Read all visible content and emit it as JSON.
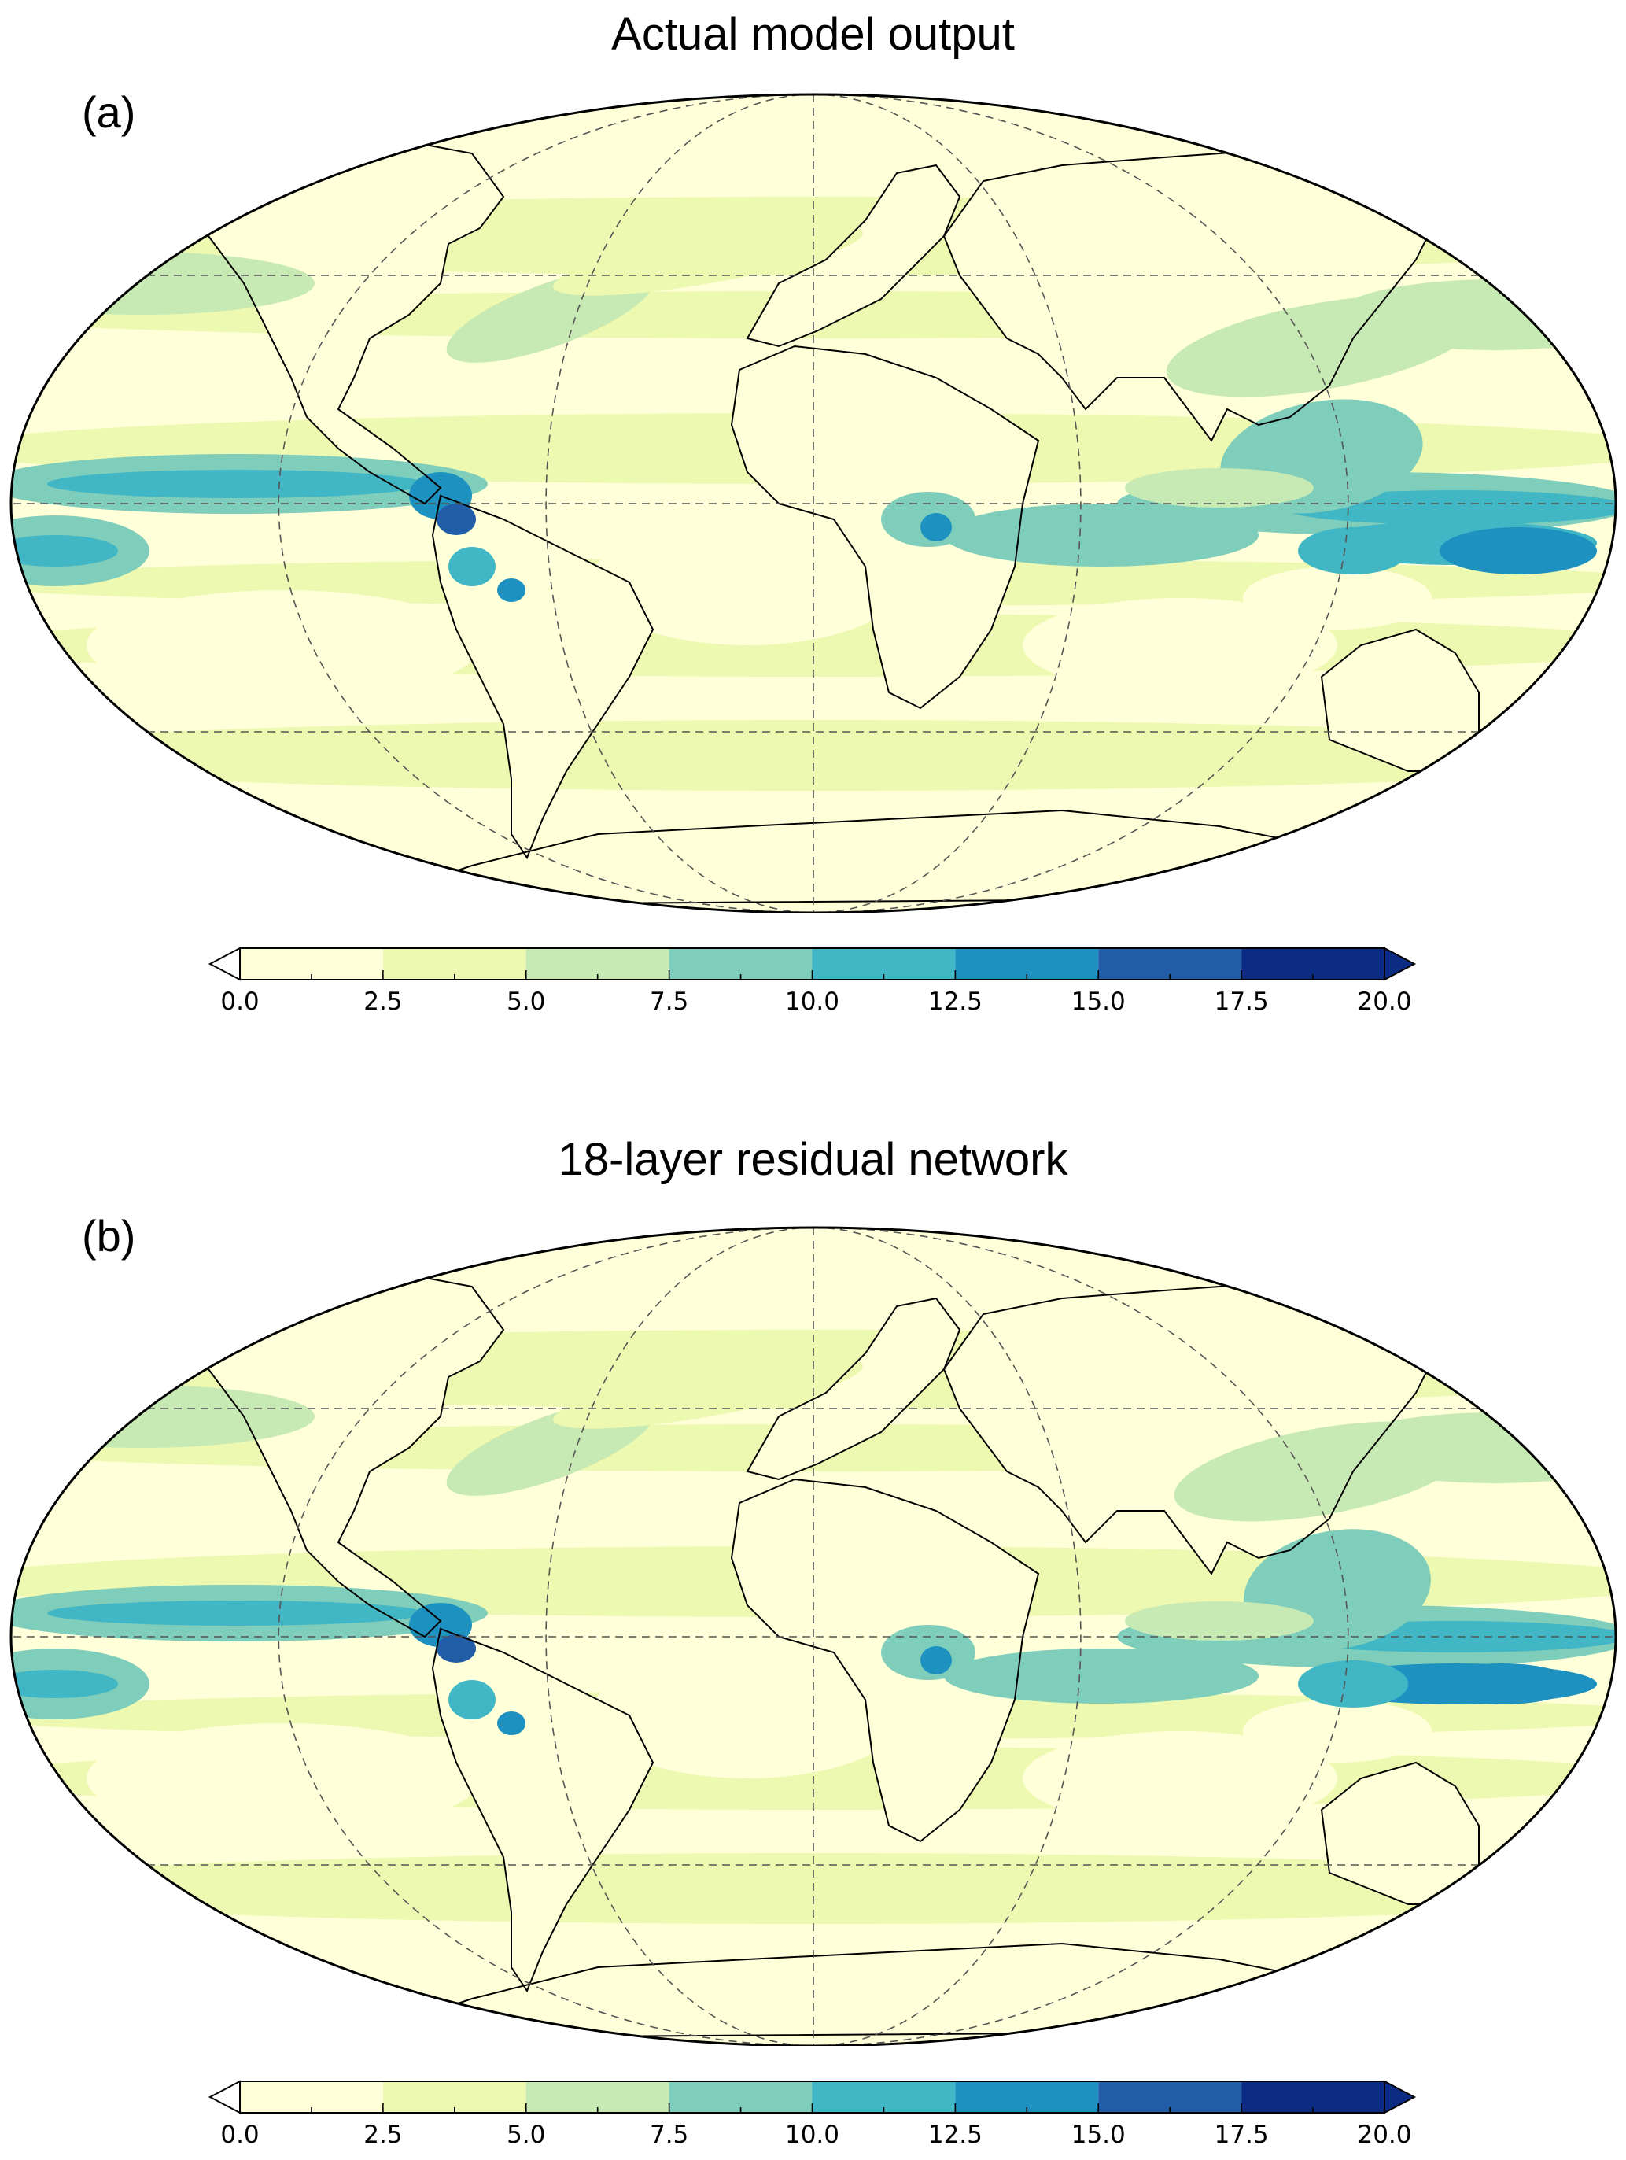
{
  "panels": [
    {
      "id": "a",
      "title": "Actual model output",
      "label": "(a)"
    },
    {
      "id": "b",
      "title": "18-layer  residual network",
      "label": "(b)"
    }
  ],
  "colorbar": {
    "ticks": [
      "0.0",
      "2.5",
      "5.0",
      "7.5",
      "10.0",
      "12.5",
      "15.0",
      "17.5",
      "20.0"
    ],
    "levels": [
      0,
      2.5,
      5,
      7.5,
      10,
      12.5,
      15,
      17.5,
      20
    ],
    "colors": [
      "#ffffd9",
      "#edf8b1",
      "#c7e9b4",
      "#7fcdbb",
      "#41b6c4",
      "#1d91c0",
      "#225ea8",
      "#0c2c84"
    ],
    "under_color": "#ffffff",
    "over_color": "#0c2c84",
    "extend": "both"
  },
  "map": {
    "projection": "robinson",
    "central_longitude": 0,
    "graticule": {
      "meridians_deg": 60,
      "parallels_deg": 30,
      "style": "dashed"
    },
    "coastlines": true
  }
}
